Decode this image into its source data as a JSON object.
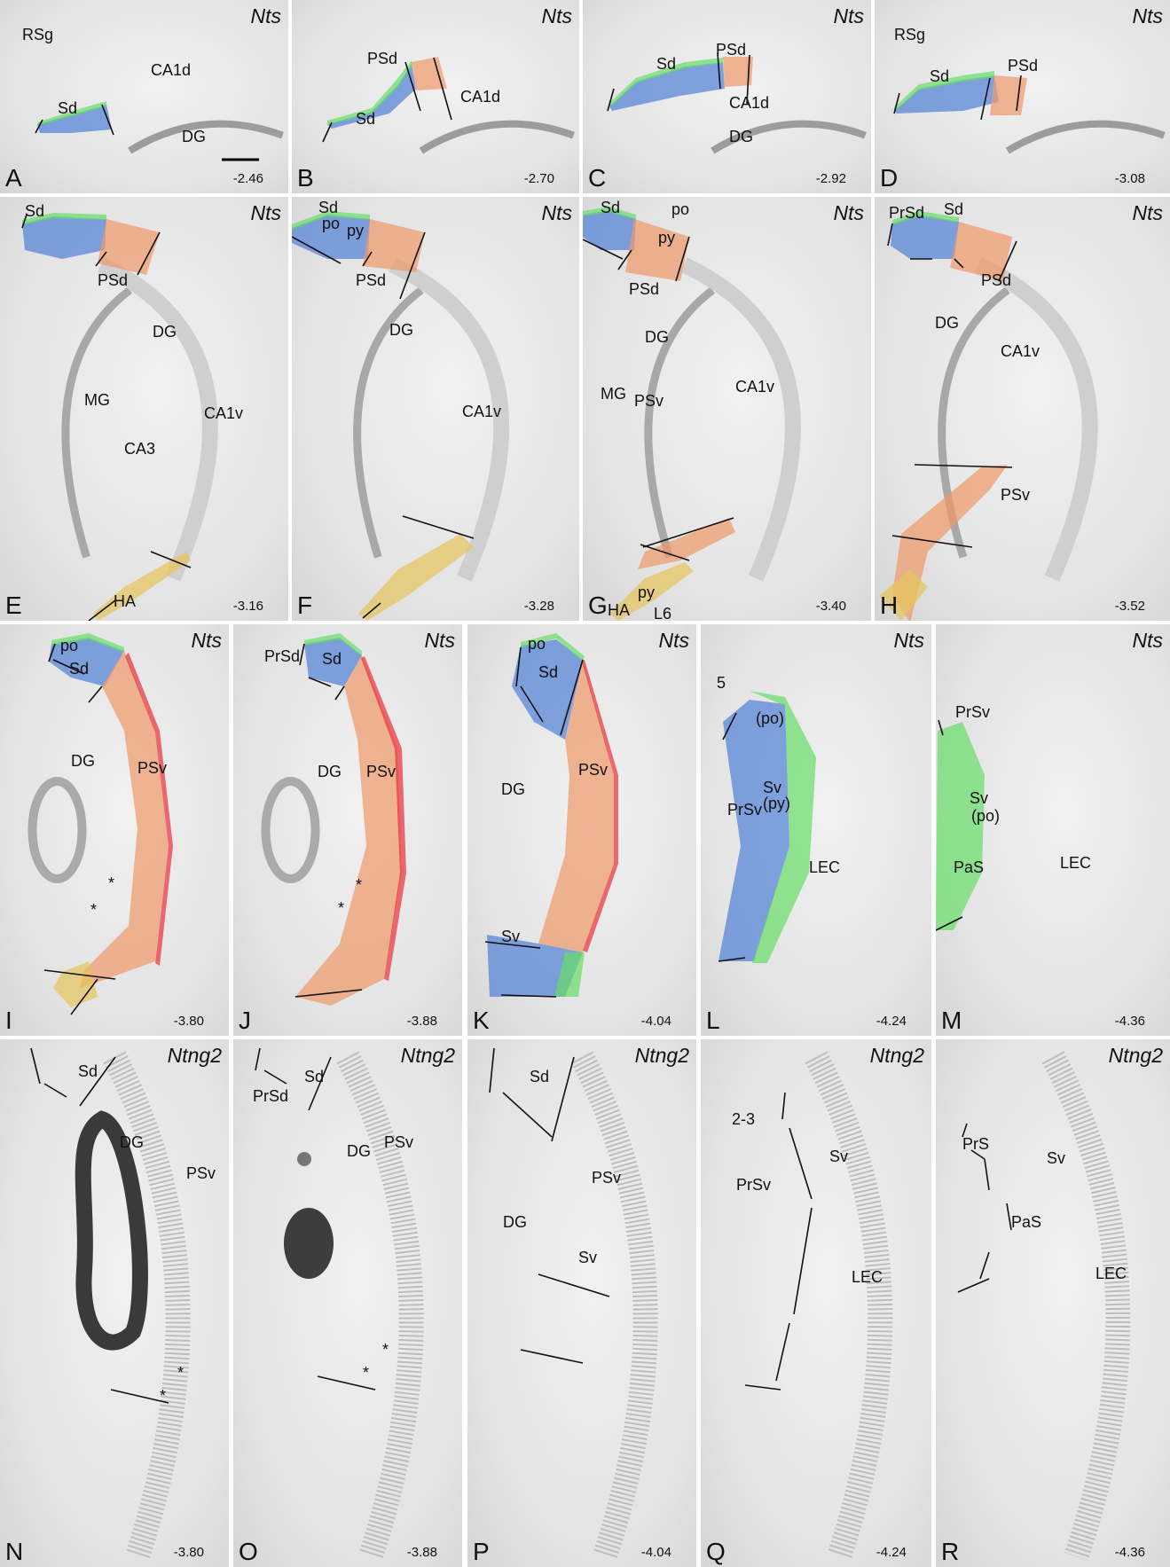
{
  "panels": [
    {
      "letter": "A",
      "gene": "Nts",
      "bregma": "-2.46",
      "labels": [
        "RSg",
        "Sd",
        "CA1d",
        "DG"
      ]
    },
    {
      "letter": "B",
      "gene": "Nts",
      "bregma": "-2.70",
      "labels": [
        "PSd",
        "Sd",
        "CA1d"
      ]
    },
    {
      "letter": "C",
      "gene": "Nts",
      "bregma": "-2.92",
      "labels": [
        "Sd",
        "PSd",
        "CA1d",
        "DG"
      ]
    },
    {
      "letter": "D",
      "gene": "Nts",
      "bregma": "-3.08",
      "labels": [
        "RSg",
        "Sd",
        "PSd"
      ]
    },
    {
      "letter": "E",
      "gene": "Nts",
      "bregma": "-3.16",
      "labels": [
        "Sd",
        "PSd",
        "DG",
        "MG",
        "CA1v",
        "CA3",
        "HA"
      ]
    },
    {
      "letter": "F",
      "gene": "Nts",
      "bregma": "-3.28",
      "labels": [
        "Sd",
        "po",
        "py",
        "PSd",
        "DG",
        "CA1v"
      ]
    },
    {
      "letter": "G",
      "gene": "Nts",
      "bregma": "-3.40",
      "labels": [
        "Sd",
        "po",
        "py",
        "PSd",
        "DG",
        "MG",
        "CA1v",
        "PSv",
        "HA",
        "py",
        "L6"
      ]
    },
    {
      "letter": "H",
      "gene": "Nts",
      "bregma": "-3.52",
      "labels": [
        "PrSd",
        "Sd",
        "PSd",
        "DG",
        "CA1v",
        "PSv"
      ]
    },
    {
      "letter": "I",
      "gene": "Nts",
      "bregma": "-3.80",
      "labels": [
        "po",
        "Sd",
        "DG",
        "PSv",
        "*",
        "*"
      ]
    },
    {
      "letter": "J",
      "gene": "Nts",
      "bregma": "-3.88",
      "labels": [
        "PrSd",
        "Sd",
        "DG",
        "PSv",
        "*",
        "*"
      ]
    },
    {
      "letter": "K",
      "gene": "Nts",
      "bregma": "-4.04",
      "labels": [
        "po",
        "Sd",
        "PSv",
        "DG",
        "Sv"
      ]
    },
    {
      "letter": "L",
      "gene": "Nts",
      "bregma": "-4.24",
      "labels": [
        "5",
        "(po)",
        "PrSv",
        "Sv",
        "(py)",
        "LEC"
      ]
    },
    {
      "letter": "M",
      "gene": "Nts",
      "bregma": "-4.36",
      "labels": [
        "PrSv",
        "Sv",
        "(po)",
        "PaS",
        "LEC"
      ]
    },
    {
      "letter": "N",
      "gene": "Ntng2",
      "bregma": "-3.80",
      "labels": [
        "Sd",
        "DG",
        "PSv",
        "*",
        "*"
      ]
    },
    {
      "letter": "O",
      "gene": "Ntng2",
      "bregma": "-3.88",
      "labels": [
        "Sd",
        "PrSd",
        "DG",
        "PSv",
        "*",
        "*"
      ]
    },
    {
      "letter": "P",
      "gene": "Ntng2",
      "bregma": "-4.04",
      "labels": [
        "Sd",
        "PSv",
        "DG",
        "Sv"
      ]
    },
    {
      "letter": "Q",
      "gene": "Ntng2",
      "bregma": "-4.24",
      "labels": [
        "2-3",
        "Sv",
        "PrSv",
        "LEC"
      ]
    },
    {
      "letter": "R",
      "gene": "Ntng2",
      "bregma": "-4.36",
      "labels": [
        "PrS",
        "Sv",
        "PaS",
        "LEC"
      ]
    }
  ]
}
